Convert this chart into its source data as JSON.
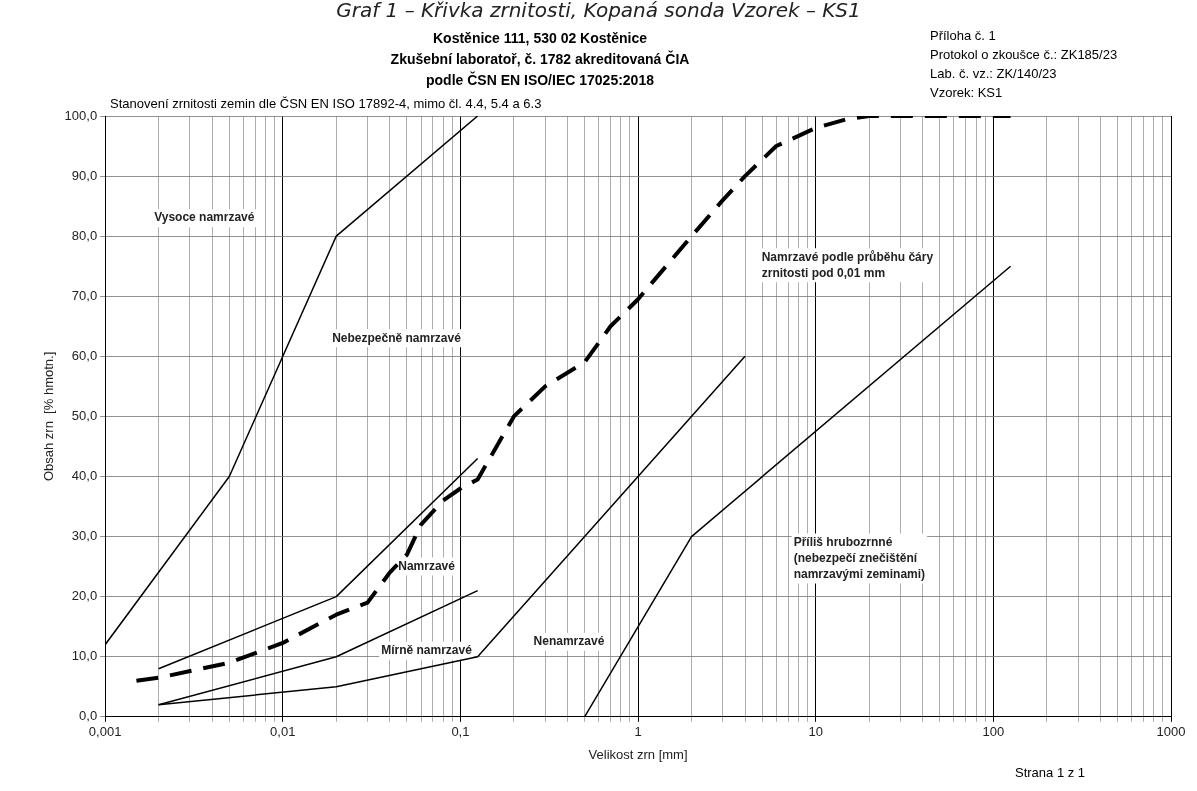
{
  "chart_data": {
    "type": "line",
    "title": "Graf 1 – Křivka zrnitosti, Kopaná sonda Vzorek – KS1",
    "subtitle": "Stanovení zrnitosti zemin dle ČSN EN ISO 17892-4, mimo čl. 4.4, 5.4 a 6.3",
    "xlabel": "Velikost zrn [mm]",
    "ylabel": "Obsah zrn  [% hmotn.]",
    "log": "x",
    "grid": true,
    "legend": false,
    "marker": "none",
    "line_style": "solid",
    "xlim": [
      0.001,
      1000
    ],
    "ylim": [
      0,
      100
    ],
    "xticks": [
      {
        "value": 0.001,
        "label": "0,001"
      },
      {
        "value": 0.002,
        "label": null
      },
      {
        "value": 0.003,
        "label": null
      },
      {
        "value": 0.004,
        "label": null
      },
      {
        "value": 0.005,
        "label": null
      },
      {
        "value": 0.006,
        "label": null
      },
      {
        "value": 0.007,
        "label": null
      },
      {
        "value": 0.008,
        "label": null
      },
      {
        "value": 0.009,
        "label": null
      },
      {
        "value": 0.01,
        "label": "0,01"
      },
      {
        "value": 0.02,
        "label": null
      },
      {
        "value": 0.03,
        "label": null
      },
      {
        "value": 0.04,
        "label": null
      },
      {
        "value": 0.05,
        "label": null
      },
      {
        "value": 0.06,
        "label": null
      },
      {
        "value": 0.07,
        "label": null
      },
      {
        "value": 0.08,
        "label": null
      },
      {
        "value": 0.09,
        "label": null
      },
      {
        "value": 0.1,
        "label": "0,1"
      },
      {
        "value": 0.2,
        "label": null
      },
      {
        "value": 0.3,
        "label": null
      },
      {
        "value": 0.4,
        "label": null
      },
      {
        "value": 0.5,
        "label": null
      },
      {
        "value": 0.6,
        "label": null
      },
      {
        "value": 0.7,
        "label": null
      },
      {
        "value": 0.8,
        "label": null
      },
      {
        "value": 0.9,
        "label": null
      },
      1,
      {
        "value": 2,
        "label": null
      },
      {
        "value": 3,
        "label": null
      },
      {
        "value": 4,
        "label": null
      },
      {
        "value": 5,
        "label": null
      },
      {
        "value": 6,
        "label": null
      },
      {
        "value": 7,
        "label": null
      },
      {
        "value": 8,
        "label": null
      },
      {
        "value": 9,
        "label": null
      },
      10,
      {
        "value": 20,
        "label": null
      },
      {
        "value": 30,
        "label": null
      },
      {
        "value": 40,
        "label": null
      },
      {
        "value": 50,
        "label": null
      },
      {
        "value": 60,
        "label": null
      },
      {
        "value": 70,
        "label": null
      },
      {
        "value": 80,
        "label": null
      },
      {
        "value": 90,
        "label": null
      },
      100,
      {
        "value": 200,
        "label": null
      },
      {
        "value": 300,
        "label": null
      },
      {
        "value": 400,
        "label": null
      },
      {
        "value": 500,
        "label": null
      },
      {
        "value": 600,
        "label": null
      },
      {
        "value": 700,
        "label": null
      },
      {
        "value": 800,
        "label": null
      },
      {
        "value": 900,
        "label": null
      },
      1000
    ],
    "yticks": [
      {
        "value": 0,
        "label": "0,0"
      },
      {
        "value": 10,
        "label": "10,0"
      },
      {
        "value": 20,
        "label": "20,0"
      },
      {
        "value": 30,
        "label": "30,0"
      },
      {
        "value": 40,
        "label": "40,0"
      },
      {
        "value": 50,
        "label": "50,0"
      },
      {
        "value": 60,
        "label": "60,0"
      },
      {
        "value": 70,
        "label": "70,0"
      },
      {
        "value": 80,
        "label": "80,0"
      },
      {
        "value": 90,
        "label": "90,0"
      },
      {
        "value": 100,
        "label": "100,0"
      }
    ],
    "series": [
      {
        "color": "#000000",
        "x": [
          0.001,
          0.005,
          0.02,
          0.125
        ],
        "values": [
          12,
          40,
          80,
          100
        ]
      },
      {
        "color": "#000000",
        "x": [
          0.002,
          0.02,
          0.125
        ],
        "values": [
          8,
          20,
          43
        ]
      },
      {
        "color": "#000000",
        "x": [
          0.002,
          0.02,
          0.125
        ],
        "values": [
          2,
          10,
          21
        ]
      },
      {
        "color": "#000000",
        "x": [
          0.002,
          0.02,
          0.125,
          4
        ],
        "values": [
          2,
          5,
          10,
          60
        ]
      },
      {
        "color": "#000000",
        "x": [
          0.5,
          2,
          125
        ],
        "values": [
          0,
          30,
          75
        ]
      },
      {
        "color": "#000000",
        "line_style": "dashed",
        "x": [
          0.0015,
          0.002,
          0.005,
          0.01,
          0.02,
          0.03,
          0.04,
          0.05,
          0.06,
          0.08,
          0.1,
          0.125,
          0.2,
          0.3,
          0.5,
          0.7,
          1,
          2,
          3,
          4,
          6,
          10,
          15,
          20,
          125
        ],
        "values": [
          6,
          6.5,
          9,
          12.3,
          17,
          19,
          24,
          27,
          32,
          36,
          38,
          39.5,
          50,
          55,
          59,
          65,
          69.5,
          80,
          86,
          90,
          95,
          98,
          99.5,
          100,
          100
        ]
      }
    ],
    "annotations": [
      "Kostěnice 111, 530 02 Kostěnice",
      "Zkušební laboratoř, č. 1782 akreditovaná ČIA",
      "podle ČSN EN ISO/IEC 17025:2018",
      "Příloha č. 1",
      "Protokol o zkoušce č.: ZK185/23",
      "Lab. č. vz.: ZK/140/23",
      "Vzorek:      KS1",
      "Strana 1 z 1",
      "Vysoce namrzavé",
      "Nebezpečně namrzavé",
      "Namrzavé",
      "Mírně namrzavé",
      "Nenamrzavé",
      "Namrzavé podle průběhu čáry\nzrnitosti pod 0,01 mm",
      "Příliš hrubozrnné\n(nebezpečí znečištění\nnamrzavými zeminami)"
    ]
  }
}
